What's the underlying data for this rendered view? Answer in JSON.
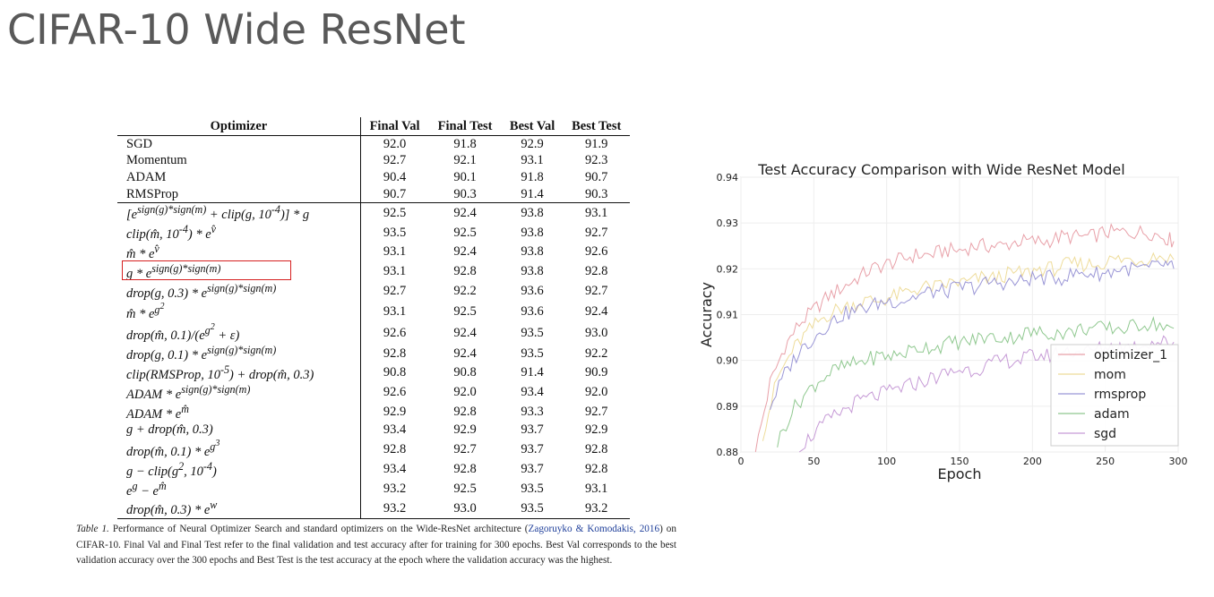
{
  "slide": {
    "title": "CIFAR-10 Wide ResNet"
  },
  "table": {
    "columns": [
      "Optimizer",
      "Final Val",
      "Final Test",
      "Best Val",
      "Best Test"
    ],
    "rows": [
      {
        "optimizer": "SGD",
        "values": [
          "92.0",
          "91.8",
          "92.9",
          "91.9"
        ]
      },
      {
        "optimizer": "Momentum",
        "values": [
          "92.7",
          "92.1",
          "93.1",
          "92.3"
        ]
      },
      {
        "optimizer": "ADAM",
        "values": [
          "90.4",
          "90.1",
          "91.8",
          "90.7"
        ]
      },
      {
        "optimizer": "RMSProp",
        "values": [
          "90.7",
          "90.3",
          "91.4",
          "90.3"
        ]
      },
      {
        "optimizer": "[e^{sign(g)*sign(m)} + clip(g, 10^{-4})] * g",
        "values": [
          "92.5",
          "92.4",
          "93.8",
          "93.1"
        ]
      },
      {
        "optimizer": "clip(m̂, 10^{-4}) * e^{v̂}",
        "values": [
          "93.5",
          "92.5",
          "93.8",
          "92.7"
        ]
      },
      {
        "optimizer": "m̂ * e^{v̂}",
        "values": [
          "93.1",
          "92.4",
          "93.8",
          "92.6"
        ]
      },
      {
        "optimizer": "g * e^{sign(g)*sign(m)}",
        "values": [
          "93.1",
          "92.8",
          "93.8",
          "92.8"
        ],
        "highlighted": true
      },
      {
        "optimizer": "drop(g, 0.3) * e^{sign(g)*sign(m)}",
        "values": [
          "92.7",
          "92.2",
          "93.6",
          "92.7"
        ]
      },
      {
        "optimizer": "m̂ * e^{g^2}",
        "values": [
          "93.1",
          "92.5",
          "93.6",
          "92.4"
        ]
      },
      {
        "optimizer": "drop(m̂, 0.1)/(e^{g^2} + ε)",
        "values": [
          "92.6",
          "92.4",
          "93.5",
          "93.0"
        ]
      },
      {
        "optimizer": "drop(g, 0.1) * e^{sign(g)*sign(m)}",
        "values": [
          "92.8",
          "92.4",
          "93.5",
          "92.2"
        ]
      },
      {
        "optimizer": "clip(RMSProp, 10^{-5}) + drop(m̂, 0.3)",
        "values": [
          "90.8",
          "90.8",
          "91.4",
          "90.9"
        ]
      },
      {
        "optimizer": "ADAM * e^{sign(g)*sign(m)}",
        "values": [
          "92.6",
          "92.0",
          "93.4",
          "92.0"
        ]
      },
      {
        "optimizer": "ADAM * e^{m̂}",
        "values": [
          "92.9",
          "92.8",
          "93.3",
          "92.7"
        ]
      },
      {
        "optimizer": "g + drop(m̂, 0.3)",
        "values": [
          "93.4",
          "92.9",
          "93.7",
          "92.9"
        ]
      },
      {
        "optimizer": "drop(m̂, 0.1) * e^{g^3}",
        "values": [
          "92.8",
          "92.7",
          "93.7",
          "92.8"
        ]
      },
      {
        "optimizer": "g − clip(g^2, 10^{-4})",
        "values": [
          "93.4",
          "92.8",
          "93.7",
          "92.8"
        ]
      },
      {
        "optimizer": "e^g − e^{m̂}",
        "values": [
          "93.2",
          "92.5",
          "93.5",
          "93.1"
        ]
      },
      {
        "optimizer": "drop(m̂, 0.3) * e^w",
        "values": [
          "93.2",
          "93.0",
          "93.5",
          "93.2"
        ]
      }
    ],
    "caption_label": "Table 1.",
    "caption_text_1": "Performance of Neural Optimizer Search and standard optimizers on the Wide-ResNet architecture (",
    "caption_citation": "Zagoruyko & Komodakis, 2016",
    "caption_text_2": ") on CIFAR-10. Final Val and Final Test refer to the final validation and test accuracy after for training for 300 epochs. Best Val corresponds to the best validation accuracy over the 300 epochs and Best Test is the test accuracy at the epoch where the validation accuracy was the highest."
  },
  "colors": {
    "highlight": "#d62020",
    "optimizer_1": "#e8a0a8",
    "mom": "#eedc9a",
    "rmsprop": "#9a96d6",
    "adam": "#8fc88f",
    "sgd": "#c69ad6"
  },
  "chart_data": {
    "type": "line",
    "title": "Test Accuracy Comparison with Wide ResNet Model",
    "xlabel": "Epoch",
    "ylabel": "Accuracy",
    "xlim": [
      0,
      300
    ],
    "ylim": [
      0.88,
      0.94
    ],
    "xticks": [
      0,
      50,
      100,
      150,
      200,
      250,
      300
    ],
    "yticks": [
      0.88,
      0.89,
      0.9,
      0.91,
      0.92,
      0.93,
      0.94
    ],
    "ytick_labels": [
      "0.88",
      "0.89",
      "0.90",
      "0.91",
      "0.92",
      "0.93",
      "0.94"
    ],
    "grid": true,
    "legend": "lower-right",
    "series": [
      {
        "name": "optimizer_1",
        "color": "#e8a0a8",
        "x": [
          10,
          20,
          30,
          40,
          50,
          60,
          70,
          80,
          90,
          100,
          110,
          120,
          130,
          140,
          150,
          160,
          170,
          180,
          190,
          200,
          210,
          220,
          230,
          240,
          250,
          260,
          270,
          280,
          290,
          297
        ],
        "values": [
          0.88,
          0.895,
          0.903,
          0.908,
          0.911,
          0.914,
          0.916,
          0.918,
          0.92,
          0.921,
          0.922,
          0.923,
          0.923,
          0.924,
          0.924,
          0.925,
          0.925,
          0.925,
          0.926,
          0.926,
          0.926,
          0.927,
          0.927,
          0.927,
          0.928,
          0.928,
          0.928,
          0.928,
          0.927,
          0.926
        ]
      },
      {
        "name": "mom",
        "color": "#eedc9a",
        "x": [
          15,
          25,
          35,
          45,
          55,
          65,
          75,
          85,
          95,
          105,
          115,
          125,
          135,
          145,
          155,
          165,
          175,
          185,
          195,
          205,
          215,
          225,
          235,
          245,
          255,
          265,
          275,
          285,
          297
        ],
        "values": [
          0.884,
          0.896,
          0.902,
          0.906,
          0.909,
          0.911,
          0.912,
          0.913,
          0.913,
          0.914,
          0.915,
          0.916,
          0.916,
          0.917,
          0.917,
          0.918,
          0.918,
          0.919,
          0.919,
          0.92,
          0.92,
          0.921,
          0.921,
          0.921,
          0.922,
          0.922,
          0.922,
          0.923,
          0.922
        ]
      },
      {
        "name": "rmsprop",
        "color": "#9a96d6",
        "x": [
          20,
          30,
          40,
          50,
          60,
          70,
          80,
          90,
          100,
          110,
          120,
          130,
          140,
          150,
          160,
          170,
          180,
          190,
          200,
          210,
          220,
          230,
          240,
          250,
          260,
          270,
          280,
          290,
          297
        ],
        "values": [
          0.89,
          0.897,
          0.902,
          0.905,
          0.908,
          0.91,
          0.911,
          0.912,
          0.913,
          0.913,
          0.914,
          0.915,
          0.915,
          0.916,
          0.916,
          0.917,
          0.917,
          0.917,
          0.918,
          0.918,
          0.918,
          0.919,
          0.919,
          0.919,
          0.92,
          0.92,
          0.92,
          0.921,
          0.92
        ]
      },
      {
        "name": "adam",
        "color": "#8fc88f",
        "x": [
          25,
          35,
          45,
          55,
          65,
          75,
          85,
          95,
          105,
          115,
          125,
          135,
          145,
          155,
          165,
          175,
          185,
          195,
          205,
          215,
          225,
          235,
          245,
          255,
          265,
          275,
          285,
          297
        ],
        "values": [
          0.882,
          0.889,
          0.893,
          0.896,
          0.898,
          0.899,
          0.9,
          0.901,
          0.901,
          0.902,
          0.903,
          0.903,
          0.904,
          0.904,
          0.905,
          0.905,
          0.905,
          0.906,
          0.906,
          0.906,
          0.906,
          0.907,
          0.907,
          0.907,
          0.907,
          0.908,
          0.908,
          0.907
        ]
      },
      {
        "name": "sgd",
        "color": "#c69ad6",
        "x": [
          40,
          50,
          60,
          70,
          80,
          90,
          100,
          110,
          120,
          130,
          140,
          150,
          160,
          170,
          180,
          190,
          200,
          210,
          220,
          230,
          240,
          250,
          260,
          270,
          280,
          290,
          297
        ],
        "values": [
          0.881,
          0.884,
          0.887,
          0.889,
          0.891,
          0.892,
          0.893,
          0.894,
          0.895,
          0.896,
          0.897,
          0.898,
          0.898,
          0.899,
          0.9,
          0.9,
          0.901,
          0.901,
          0.902,
          0.902,
          0.902,
          0.903,
          0.903,
          0.903,
          0.904,
          0.904,
          0.904
        ]
      }
    ]
  }
}
